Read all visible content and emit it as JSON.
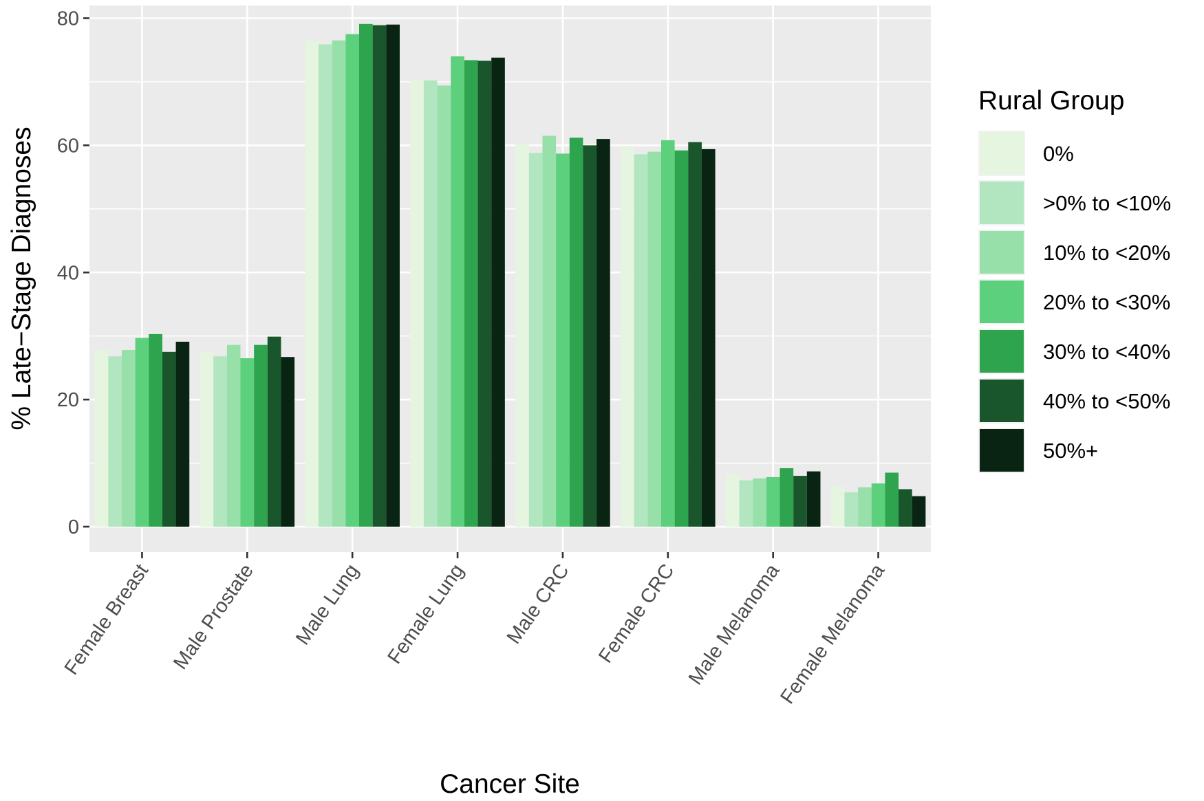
{
  "chart_data": {
    "type": "bar",
    "title": "",
    "xlabel": "Cancer Site",
    "ylabel": "% Late−Stage Diagnoses",
    "ylim": [
      -4,
      82
    ],
    "yticks": [
      0,
      20,
      40,
      60,
      80
    ],
    "grid": true,
    "legend_position": "right",
    "legend_title": "Rural Group",
    "categories": [
      "Female Breast",
      "Male Prostate",
      "Male Lung",
      "Female Lung",
      "Male CRC",
      "Female CRC",
      "Male Melanoma",
      "Female Melanoma"
    ],
    "series": [
      {
        "name": "0%",
        "color": "#e5f5e0",
        "values": [
          27.8,
          27.5,
          76.5,
          70.3,
          60.2,
          59.7,
          8.3,
          6.3
        ]
      },
      {
        "name": ">0% to <10%",
        "color": "#b2e6c0",
        "values": [
          26.8,
          26.8,
          75.9,
          70.2,
          58.8,
          58.6,
          7.3,
          5.4
        ]
      },
      {
        "name": "10% to <20%",
        "color": "#98e0aa",
        "values": [
          27.8,
          28.6,
          76.5,
          69.4,
          61.5,
          59.0,
          7.6,
          6.2
        ]
      },
      {
        "name": "20% to <30%",
        "color": "#5dd07d",
        "values": [
          29.7,
          26.5,
          77.5,
          74.0,
          58.7,
          60.8,
          7.8,
          6.8
        ]
      },
      {
        "name": "30% to <40%",
        "color": "#2ea44f",
        "values": [
          30.3,
          28.6,
          79.1,
          73.4,
          61.2,
          59.2,
          9.2,
          8.5
        ]
      },
      {
        "name": "40% to <50%",
        "color": "#19562c",
        "values": [
          27.5,
          29.9,
          78.9,
          73.3,
          60.0,
          60.5,
          8.0,
          5.9
        ]
      },
      {
        "name": "50%+",
        "color": "#0a2414",
        "values": [
          29.1,
          26.7,
          79.0,
          73.8,
          61.0,
          59.4,
          8.7,
          4.8
        ]
      }
    ]
  }
}
